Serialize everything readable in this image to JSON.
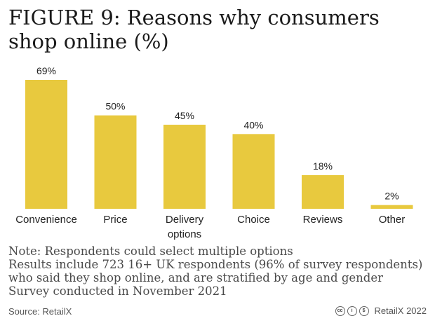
{
  "title_lines": [
    "FIGURE 9: Reasons why consumers",
    "shop online (%)"
  ],
  "chart_data": {
    "type": "bar",
    "title": "FIGURE 9: Reasons why consumers shop online (%)",
    "categories": [
      [
        "Convenience"
      ],
      [
        "Price"
      ],
      [
        "Delivery",
        "options"
      ],
      [
        "Choice"
      ],
      [
        "Reviews"
      ],
      [
        "Other"
      ]
    ],
    "values": [
      69,
      50,
      45,
      40,
      18,
      2
    ],
    "value_labels": [
      "69%",
      "50%",
      "45%",
      "40%",
      "18%",
      "2%"
    ],
    "bar_color": "#e8c93e",
    "xlabel": "",
    "ylabel": "",
    "ylim": [
      0,
      69
    ],
    "grid": false,
    "legend": "none"
  },
  "notes": [
    "Note: Respondents could select multiple options",
    "Results include 723 16+ UK respondents (96% of survey respondents)",
    "who said they shop online, and are stratified by age and gender",
    "Survey conducted in November 2021"
  ],
  "source": "Source: RetailX",
  "footer": {
    "icons": [
      {
        "name": "creative-commons-icon",
        "glyph": "cc"
      },
      {
        "name": "attribution-icon",
        "glyph": "i"
      },
      {
        "name": "noncommercial-icon",
        "glyph": "$"
      }
    ],
    "brand": "RetailX 2022"
  }
}
